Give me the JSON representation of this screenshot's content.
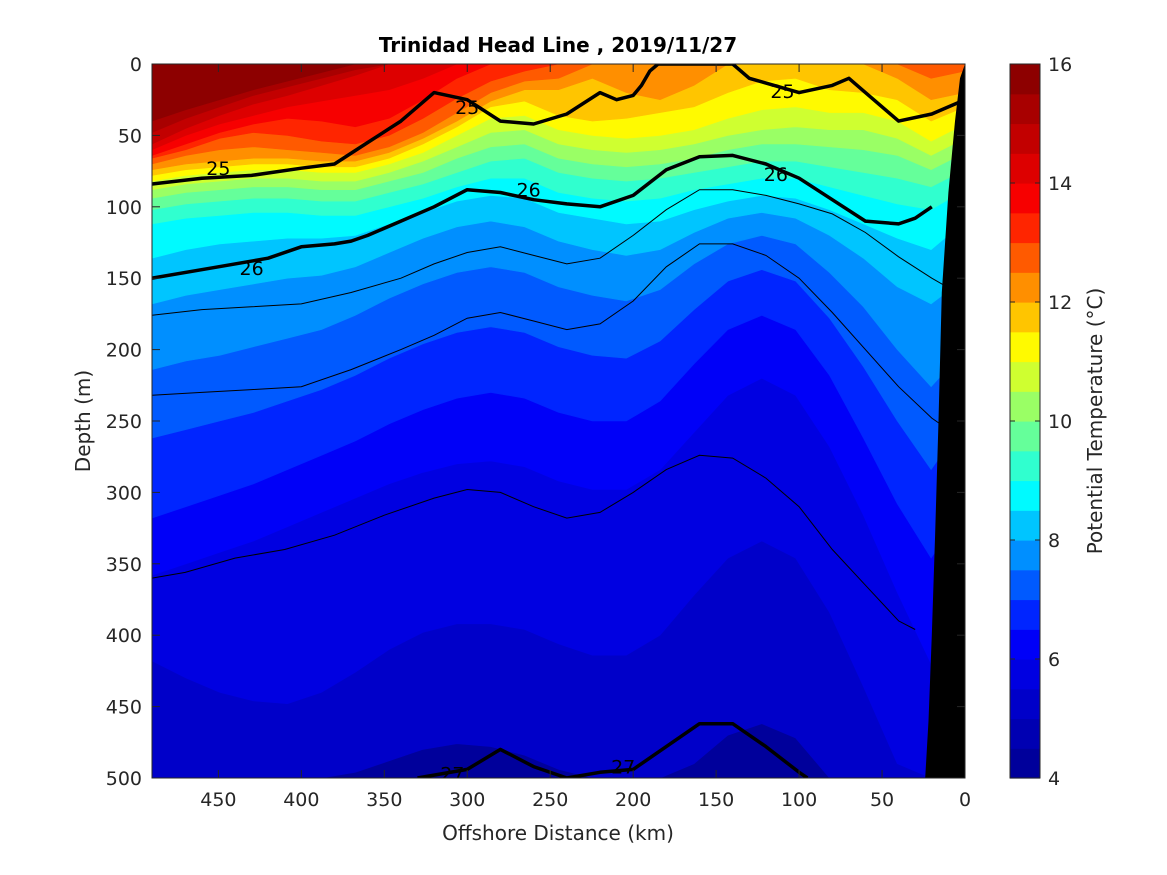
{
  "chart_data": {
    "type": "heatmap",
    "title": "Trinidad Head Line , 2019/11/27",
    "xlabel": "Offshore Distance (km)",
    "ylabel": "Depth (m)",
    "colorbar_label": "Potential Temperature (°C)",
    "x_range": [
      490,
      0
    ],
    "y_range": [
      0,
      500
    ],
    "x_ticks": [
      450,
      400,
      350,
      300,
      250,
      200,
      150,
      100,
      50,
      0
    ],
    "y_ticks": [
      0,
      50,
      100,
      150,
      200,
      250,
      300,
      350,
      400,
      450,
      500
    ],
    "colorbar_range": [
      4,
      16
    ],
    "colorbar_ticks": [
      4,
      6,
      8,
      10,
      12,
      14,
      16
    ],
    "colorbar_step": 0.5,
    "colormap": [
      "#00008f",
      "#0000ff",
      "#00ffff",
      "#ffff00",
      "#ff0000",
      "#800000"
    ],
    "land_color": "#000000",
    "temperature_isotherms": [
      {
        "temp": 15.5,
        "depths": [
          40,
          32,
          25,
          18,
          12,
          6,
          0,
          0,
          0,
          0,
          0,
          0,
          0,
          0,
          0,
          0,
          0,
          0,
          0,
          0,
          0,
          0,
          0,
          0,
          0
        ]
      },
      {
        "temp": 15.0,
        "depths": [
          48,
          38,
          30,
          22,
          16,
          10,
          4,
          0,
          0,
          0,
          0,
          0,
          0,
          0,
          0,
          0,
          0,
          0,
          0,
          0,
          0,
          0,
          0,
          0,
          0
        ]
      },
      {
        "temp": 14.5,
        "depths": [
          56,
          45,
          36,
          28,
          22,
          15,
          8,
          0,
          0,
          0,
          0,
          0,
          0,
          0,
          0,
          0,
          0,
          0,
          0,
          0,
          0,
          0,
          0,
          0,
          0
        ]
      },
      {
        "temp": 14.0,
        "depths": [
          60,
          50,
          42,
          36,
          30,
          26,
          22,
          18,
          10,
          0,
          0,
          0,
          0,
          0,
          0,
          0,
          0,
          0,
          0,
          0,
          0,
          0,
          0,
          0,
          0
        ]
      },
      {
        "temp": 13.5,
        "depths": [
          64,
          56,
          48,
          42,
          38,
          40,
          44,
          38,
          25,
          10,
          0,
          0,
          0,
          0,
          0,
          0,
          0,
          0,
          0,
          0,
          0,
          0,
          0,
          0,
          0
        ]
      },
      {
        "temp": 13.0,
        "depths": [
          66,
          60,
          52,
          48,
          50,
          54,
          56,
          50,
          38,
          24,
          12,
          5,
          0,
          0,
          0,
          0,
          0,
          0,
          0,
          0,
          0,
          0,
          0,
          0,
          0
        ]
      },
      {
        "temp": 12.5,
        "depths": [
          70,
          64,
          60,
          58,
          60,
          62,
          64,
          58,
          48,
          34,
          20,
          12,
          10,
          0,
          0,
          0,
          0,
          0,
          0,
          0,
          0,
          0,
          0,
          10,
          5
        ]
      },
      {
        "temp": 12.0,
        "depths": [
          74,
          70,
          68,
          66,
          66,
          68,
          68,
          62,
          52,
          40,
          26,
          18,
          18,
          10,
          20,
          25,
          15,
          0,
          0,
          0,
          0,
          0,
          10,
          25,
          20
        ]
      },
      {
        "temp": 11.5,
        "depths": [
          78,
          74,
          72,
          70,
          70,
          72,
          72,
          66,
          56,
          44,
          30,
          26,
          36,
          40,
          38,
          34,
          30,
          20,
          12,
          10,
          18,
          20,
          25,
          40,
          30
        ]
      },
      {
        "temp": 11.0,
        "depths": [
          82,
          78,
          76,
          74,
          74,
          76,
          76,
          70,
          62,
          50,
          38,
          36,
          46,
          50,
          52,
          50,
          46,
          38,
          32,
          30,
          34,
          34,
          40,
          54,
          42
        ]
      },
      {
        "temp": 10.5,
        "depths": [
          88,
          84,
          82,
          80,
          80,
          82,
          82,
          76,
          68,
          58,
          48,
          46,
          56,
          60,
          62,
          60,
          56,
          50,
          46,
          44,
          46,
          46,
          52,
          64,
          52
        ]
      },
      {
        "temp": 10.0,
        "depths": [
          94,
          90,
          88,
          86,
          86,
          88,
          88,
          82,
          76,
          66,
          58,
          56,
          66,
          70,
          72,
          70,
          66,
          60,
          56,
          56,
          58,
          60,
          64,
          74,
          62
        ]
      },
      {
        "temp": 9.5,
        "depths": [
          102,
          98,
          96,
          94,
          94,
          96,
          96,
          90,
          84,
          76,
          68,
          66,
          76,
          80,
          82,
          80,
          76,
          72,
          68,
          68,
          72,
          76,
          80,
          86,
          74
        ]
      },
      {
        "temp": 9.0,
        "depths": [
          112,
          108,
          106,
          104,
          104,
          106,
          106,
          100,
          94,
          86,
          80,
          80,
          90,
          94,
          96,
          94,
          88,
          84,
          80,
          80,
          86,
          92,
          98,
          102,
          88
        ]
      },
      {
        "temp": 8.5,
        "depths": [
          136,
          130,
          126,
          124,
          122,
          122,
          120,
          112,
          104,
          96,
          92,
          94,
          104,
          108,
          112,
          110,
          102,
          96,
          92,
          94,
          102,
          112,
          122,
          130,
          110
        ]
      },
      {
        "temp": 8.0,
        "depths": [
          168,
          162,
          158,
          154,
          150,
          148,
          142,
          132,
          122,
          114,
          110,
          114,
          124,
          130,
          134,
          130,
          118,
          108,
          104,
          108,
          120,
          136,
          156,
          168,
          150
        ]
      },
      {
        "temp": 7.5,
        "depths": [
          214,
          208,
          204,
          198,
          192,
          186,
          176,
          164,
          154,
          146,
          142,
          146,
          156,
          162,
          166,
          158,
          140,
          126,
          120,
          126,
          146,
          170,
          200,
          226,
          200
        ]
      },
      {
        "temp": 7.0,
        "depths": [
          262,
          256,
          250,
          244,
          236,
          228,
          218,
          206,
          196,
          188,
          184,
          188,
          198,
          204,
          206,
          194,
          172,
          152,
          144,
          152,
          178,
          212,
          250,
          284,
          250
        ]
      },
      {
        "temp": 6.5,
        "depths": [
          318,
          310,
          302,
          294,
          284,
          274,
          264,
          252,
          242,
          234,
          230,
          234,
          244,
          250,
          250,
          236,
          210,
          186,
          176,
          186,
          218,
          262,
          308,
          346,
          310
        ]
      },
      {
        "temp": 6.0,
        "depths": [
          358,
          350,
          342,
          334,
          324,
          314,
          304,
          294,
          286,
          280,
          278,
          282,
          292,
          298,
          298,
          284,
          258,
          232,
          220,
          232,
          268,
          316,
          370,
          420,
          380
        ]
      },
      {
        "temp": 5.5,
        "depths": [
          418,
          430,
          440,
          446,
          448,
          440,
          426,
          410,
          398,
          392,
          392,
          396,
          406,
          414,
          414,
          400,
          372,
          346,
          334,
          346,
          384,
          436,
          490,
          500,
          460
        ]
      },
      {
        "temp": 5.0,
        "depths": [
          500,
          500,
          500,
          500,
          500,
          500,
          496,
          488,
          480,
          476,
          478,
          484,
          494,
          500,
          500,
          500,
          490,
          470,
          462,
          472,
          500,
          500,
          500,
          500,
          500
        ]
      }
    ],
    "density_contours": [
      {
        "value": 25.0,
        "bold": true,
        "x": [
          490,
          460,
          430,
          400,
          380,
          360,
          340,
          320,
          300,
          280,
          260,
          240,
          220,
          210,
          200,
          195,
          190,
          185,
          180,
          175,
          170,
          165,
          160,
          155,
          150,
          145,
          140,
          130,
          100,
          80,
          70,
          60,
          40,
          20,
          0
        ],
        "depths": [
          84,
          80,
          78,
          73,
          70,
          55,
          40,
          20,
          25,
          40,
          42,
          35,
          20,
          25,
          22,
          15,
          5,
          0,
          0,
          0,
          0,
          0,
          0,
          0,
          0,
          0,
          0,
          10,
          20,
          15,
          10,
          20,
          40,
          35,
          25
        ]
      },
      {
        "value": 26.0,
        "bold": true,
        "x": [
          490,
          450,
          420,
          400,
          380,
          370,
          360,
          340,
          320,
          300,
          280,
          260,
          240,
          220,
          200,
          180,
          160,
          140,
          120,
          100,
          80,
          60,
          40,
          30,
          20
        ],
        "depths": [
          150,
          142,
          136,
          128,
          126,
          124,
          120,
          110,
          100,
          88,
          90,
          95,
          98,
          100,
          92,
          74,
          65,
          64,
          70,
          80,
          95,
          110,
          112,
          108,
          100
        ]
      },
      {
        "value": 27.0,
        "bold": true,
        "x": [
          330,
          300,
          280,
          260,
          240,
          220,
          200,
          180,
          160,
          140,
          120,
          100,
          95
        ],
        "depths": [
          500,
          494,
          480,
          492,
          500,
          496,
          494,
          478,
          462,
          462,
          478,
          496,
          500
        ]
      }
    ],
    "thin_contours": [
      {
        "x": [
          490,
          460,
          430,
          400,
          370,
          340,
          320,
          300,
          280,
          260,
          240,
          220,
          200,
          180,
          160,
          140,
          120,
          100,
          80,
          60,
          40,
          20,
          5
        ],
        "depths": [
          176,
          172,
          170,
          168,
          160,
          150,
          140,
          132,
          128,
          134,
          140,
          136,
          120,
          102,
          88,
          88,
          92,
          98,
          105,
          118,
          135,
          150,
          160
        ]
      },
      {
        "x": [
          490,
          460,
          430,
          400,
          370,
          340,
          320,
          300,
          280,
          260,
          240,
          220,
          200,
          180,
          160,
          140,
          120,
          100,
          80,
          60,
          40,
          20,
          15
        ],
        "depths": [
          232,
          230,
          228,
          226,
          214,
          200,
          190,
          178,
          174,
          180,
          186,
          182,
          166,
          142,
          126,
          126,
          134,
          150,
          174,
          200,
          226,
          248,
          252
        ]
      },
      {
        "x": [
          490,
          470,
          440,
          410,
          380,
          350,
          320,
          300,
          280,
          260,
          240,
          220,
          200,
          180,
          160,
          140,
          120,
          100,
          80,
          60,
          40,
          30
        ],
        "depths": [
          360,
          356,
          346,
          340,
          330,
          316,
          304,
          298,
          300,
          310,
          318,
          314,
          300,
          284,
          274,
          276,
          290,
          310,
          340,
          365,
          390,
          396
        ]
      }
    ],
    "contour_labels": [
      {
        "text": "25",
        "x": 450,
        "depth": 73
      },
      {
        "text": "25",
        "x": 300,
        "depth": 30
      },
      {
        "text": "25",
        "x": 110,
        "depth": 19
      },
      {
        "text": "26",
        "x": 263,
        "depth": 88
      },
      {
        "text": "26",
        "x": 114,
        "depth": 77
      },
      {
        "text": "26",
        "x": 430,
        "depth": 143
      },
      {
        "text": "27",
        "x": 309,
        "depth": 497
      },
      {
        "text": "27",
        "x": 206,
        "depth": 492
      }
    ],
    "shelf_boundary": [
      [
        0,
        0
      ],
      [
        3,
        10
      ],
      [
        6,
        40
      ],
      [
        10,
        90
      ],
      [
        14,
        160
      ],
      [
        16,
        250
      ],
      [
        18,
        330
      ],
      [
        20,
        400
      ],
      [
        22,
        460
      ],
      [
        24,
        500
      ]
    ]
  }
}
